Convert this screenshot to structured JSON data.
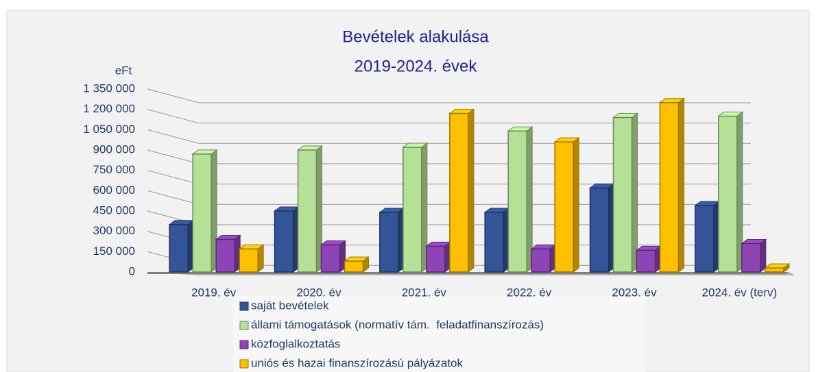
{
  "chart_data": {
    "type": "bar",
    "title": "Bevételek alakulása",
    "subtitle": "2019-2024. évek",
    "y_axis_label": "eFt",
    "categories": [
      "2019. év",
      "2020. év",
      "2021. év",
      "2022. év",
      "2023. év",
      "2024. év (terv)"
    ],
    "series": [
      {
        "name": "saját bevételek",
        "color": "#34549a",
        "values": [
          350000,
          450000,
          440000,
          440000,
          620000,
          490000
        ]
      },
      {
        "name": "állami támogatások (normatív tám.  feladatfinanszírozás)",
        "color": "#b5e196",
        "values": [
          870000,
          900000,
          920000,
          1040000,
          1140000,
          1150000
        ]
      },
      {
        "name": "közfoglalkoztatás",
        "color": "#8e44b6",
        "values": [
          240000,
          200000,
          190000,
          170000,
          160000,
          210000
        ]
      },
      {
        "name": "uniós és hazai finanszírozású pályázatok",
        "color": "#ffc000",
        "values": [
          170000,
          80000,
          1170000,
          960000,
          1250000,
          30000
        ]
      }
    ],
    "ylim": [
      0,
      1350000
    ],
    "yticks": [
      0,
      {
        "value": 150000,
        "label": "150 000"
      },
      {
        "value": 300000,
        "label": "300 000"
      },
      {
        "value": 450000,
        "label": "450 000"
      },
      {
        "value": 600000,
        "label": "600 000"
      },
      {
        "value": 750000,
        "label": "750 000"
      },
      {
        "value": 900000,
        "label": "900 000"
      },
      {
        "value": 1050000,
        "label": "1 050 000"
      },
      {
        "value": 1200000,
        "label": "1 200 000"
      },
      {
        "value": 1350000,
        "label": "1 350 000"
      }
    ],
    "grid": true
  }
}
